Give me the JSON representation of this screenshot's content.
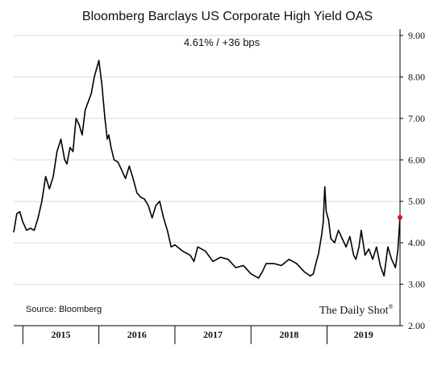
{
  "chart_data": {
    "type": "line",
    "title": "Bloomberg Barclays US Corporate High Yield OAS",
    "subtitle": "4.61%  /  +36 bps",
    "ylim": [
      2.0,
      9.0
    ],
    "y_ticks": [
      "9.00",
      "8.00",
      "7.00",
      "6.00",
      "5.00",
      "4.00",
      "3.00",
      "2.00"
    ],
    "x_range": [
      2014.88,
      2019.96
    ],
    "year_labels": [
      "2015",
      "2016",
      "2017",
      "2018",
      "2019"
    ],
    "year_boundaries": [
      2015.0,
      2016.0,
      2017.0,
      2018.0,
      2019.0
    ],
    "grid": true,
    "series": [
      {
        "color": "#000000",
        "x": [
          2014.88,
          2014.92,
          2014.96,
          2015.0,
          2015.05,
          2015.1,
          2015.15,
          2015.2,
          2015.25,
          2015.3,
          2015.35,
          2015.4,
          2015.45,
          2015.5,
          2015.55,
          2015.58,
          2015.62,
          2015.66,
          2015.7,
          2015.74,
          2015.78,
          2015.82,
          2015.86,
          2015.9,
          2015.94,
          2015.97,
          2016.0,
          2016.04,
          2016.08,
          2016.11,
          2016.13,
          2016.16,
          2016.2,
          2016.25,
          2016.3,
          2016.35,
          2016.4,
          2016.45,
          2016.5,
          2016.55,
          2016.6,
          2016.65,
          2016.7,
          2016.75,
          2016.8,
          2016.85,
          2016.9,
          2016.95,
          2017.0,
          2017.1,
          2017.2,
          2017.25,
          2017.3,
          2017.4,
          2017.5,
          2017.6,
          2017.7,
          2017.8,
          2017.9,
          2018.0,
          2018.1,
          2018.15,
          2018.2,
          2018.3,
          2018.4,
          2018.5,
          2018.6,
          2018.7,
          2018.78,
          2018.82,
          2018.86,
          2018.89,
          2018.93,
          2018.95,
          2018.97,
          2018.99,
          2019.02,
          2019.05,
          2019.1,
          2019.15,
          2019.2,
          2019.25,
          2019.3,
          2019.35,
          2019.38,
          2019.42,
          2019.45,
          2019.5,
          2019.55,
          2019.6,
          2019.65,
          2019.7,
          2019.75,
          2019.8,
          2019.85,
          2019.9,
          2019.93,
          2019.96
        ],
        "values": [
          4.25,
          4.7,
          4.75,
          4.5,
          4.3,
          4.35,
          4.3,
          4.6,
          5.0,
          5.6,
          5.3,
          5.6,
          6.2,
          6.5,
          6.0,
          5.9,
          6.3,
          6.2,
          7.0,
          6.85,
          6.6,
          7.2,
          7.4,
          7.6,
          8.0,
          8.2,
          8.4,
          7.8,
          7.0,
          6.5,
          6.6,
          6.3,
          6.0,
          5.95,
          5.75,
          5.55,
          5.85,
          5.55,
          5.2,
          5.1,
          5.05,
          4.9,
          4.6,
          4.9,
          5.0,
          4.6,
          4.3,
          3.9,
          3.95,
          3.8,
          3.7,
          3.55,
          3.9,
          3.8,
          3.55,
          3.65,
          3.6,
          3.4,
          3.45,
          3.25,
          3.15,
          3.3,
          3.5,
          3.5,
          3.45,
          3.6,
          3.5,
          3.3,
          3.2,
          3.25,
          3.55,
          3.75,
          4.2,
          4.5,
          5.35,
          4.75,
          4.55,
          4.1,
          4.0,
          4.3,
          4.1,
          3.9,
          4.15,
          3.7,
          3.6,
          3.9,
          4.3,
          3.7,
          3.85,
          3.6,
          3.9,
          3.45,
          3.2,
          3.9,
          3.6,
          3.4,
          3.8,
          4.61
        ]
      }
    ],
    "last_point": {
      "x": 2019.96,
      "value": 4.61,
      "color": "#e8131b"
    }
  },
  "footer": {
    "source": "Source: Bloomberg",
    "brand": "The Daily Shot",
    "brand_mark": "®"
  }
}
